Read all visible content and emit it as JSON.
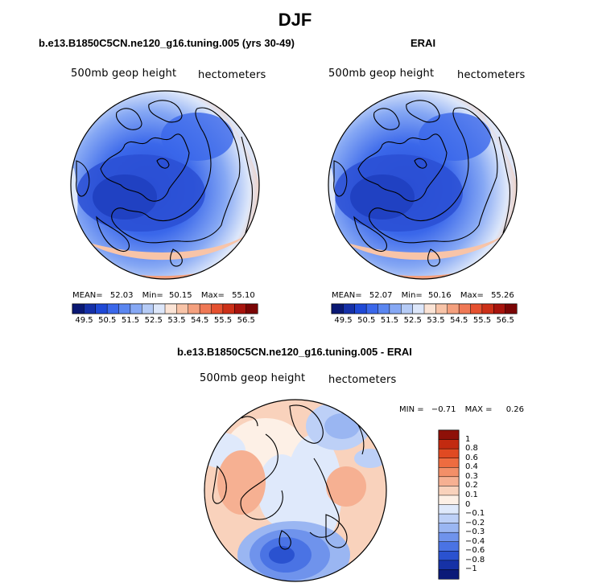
{
  "figure": {
    "title": "DJF"
  },
  "panels": {
    "model": {
      "title": "b.e13.B1850C5CN.ne120_g16.tuning.005 (yrs 30-49)",
      "variable": "500mb geop height",
      "units": "hectometers",
      "stats": {
        "mean_label": "MEAN=",
        "mean": "52.03",
        "min_label": "Min=",
        "min": "50.15",
        "max_label": "Max=",
        "max": "55.10"
      }
    },
    "obs": {
      "title": "ERAI",
      "variable": "500mb geop height",
      "units": "hectometers",
      "stats": {
        "mean_label": "MEAN=",
        "mean": "52.07",
        "min_label": "Min=",
        "min": "50.16",
        "max_label": "Max=",
        "max": "55.26"
      }
    },
    "diff": {
      "title": "b.e13.B1850C5CN.ne120_g16.tuning.005 - ERAI",
      "variable": "500mb geop height",
      "units": "hectometers",
      "stats": {
        "min_label": "MIN =",
        "min": "−0.71",
        "max_label": "MAX =",
        "max": "0.26"
      }
    }
  },
  "colorbars": {
    "abs": {
      "ticks": [
        "49.5",
        "50.5",
        "51.5",
        "52.5",
        "53.5",
        "54.5",
        "55.5",
        "56.5"
      ],
      "colors": [
        "#0a1873",
        "#1530a8",
        "#1f49d6",
        "#3a67ea",
        "#5a86f0",
        "#86a8f4",
        "#b5cbf6",
        "#dde7fa",
        "#fbe4d6",
        "#f8c4a8",
        "#f4a07e",
        "#ef7855",
        "#e5502f",
        "#cc3018",
        "#a8140d",
        "#7a0505"
      ]
    },
    "diff": {
      "labels": [
        "1",
        "0.8",
        "0.6",
        "0.4",
        "0.3",
        "0.2",
        "0.1",
        "0",
        "−0.1",
        "−0.2",
        "−0.3",
        "−0.4",
        "−0.6",
        "−0.8",
        "−1"
      ],
      "colors": [
        "#8e1008",
        "#c22a10",
        "#e04a22",
        "#ee6c40",
        "#f38f68",
        "#f6b092",
        "#f9d2bc",
        "#fdf0e6",
        "#dfe9fb",
        "#bdd0f7",
        "#9ab6f2",
        "#6f93ec",
        "#4a73e4",
        "#2a52d0",
        "#1632a6",
        "#0b1a78"
      ]
    }
  }
}
